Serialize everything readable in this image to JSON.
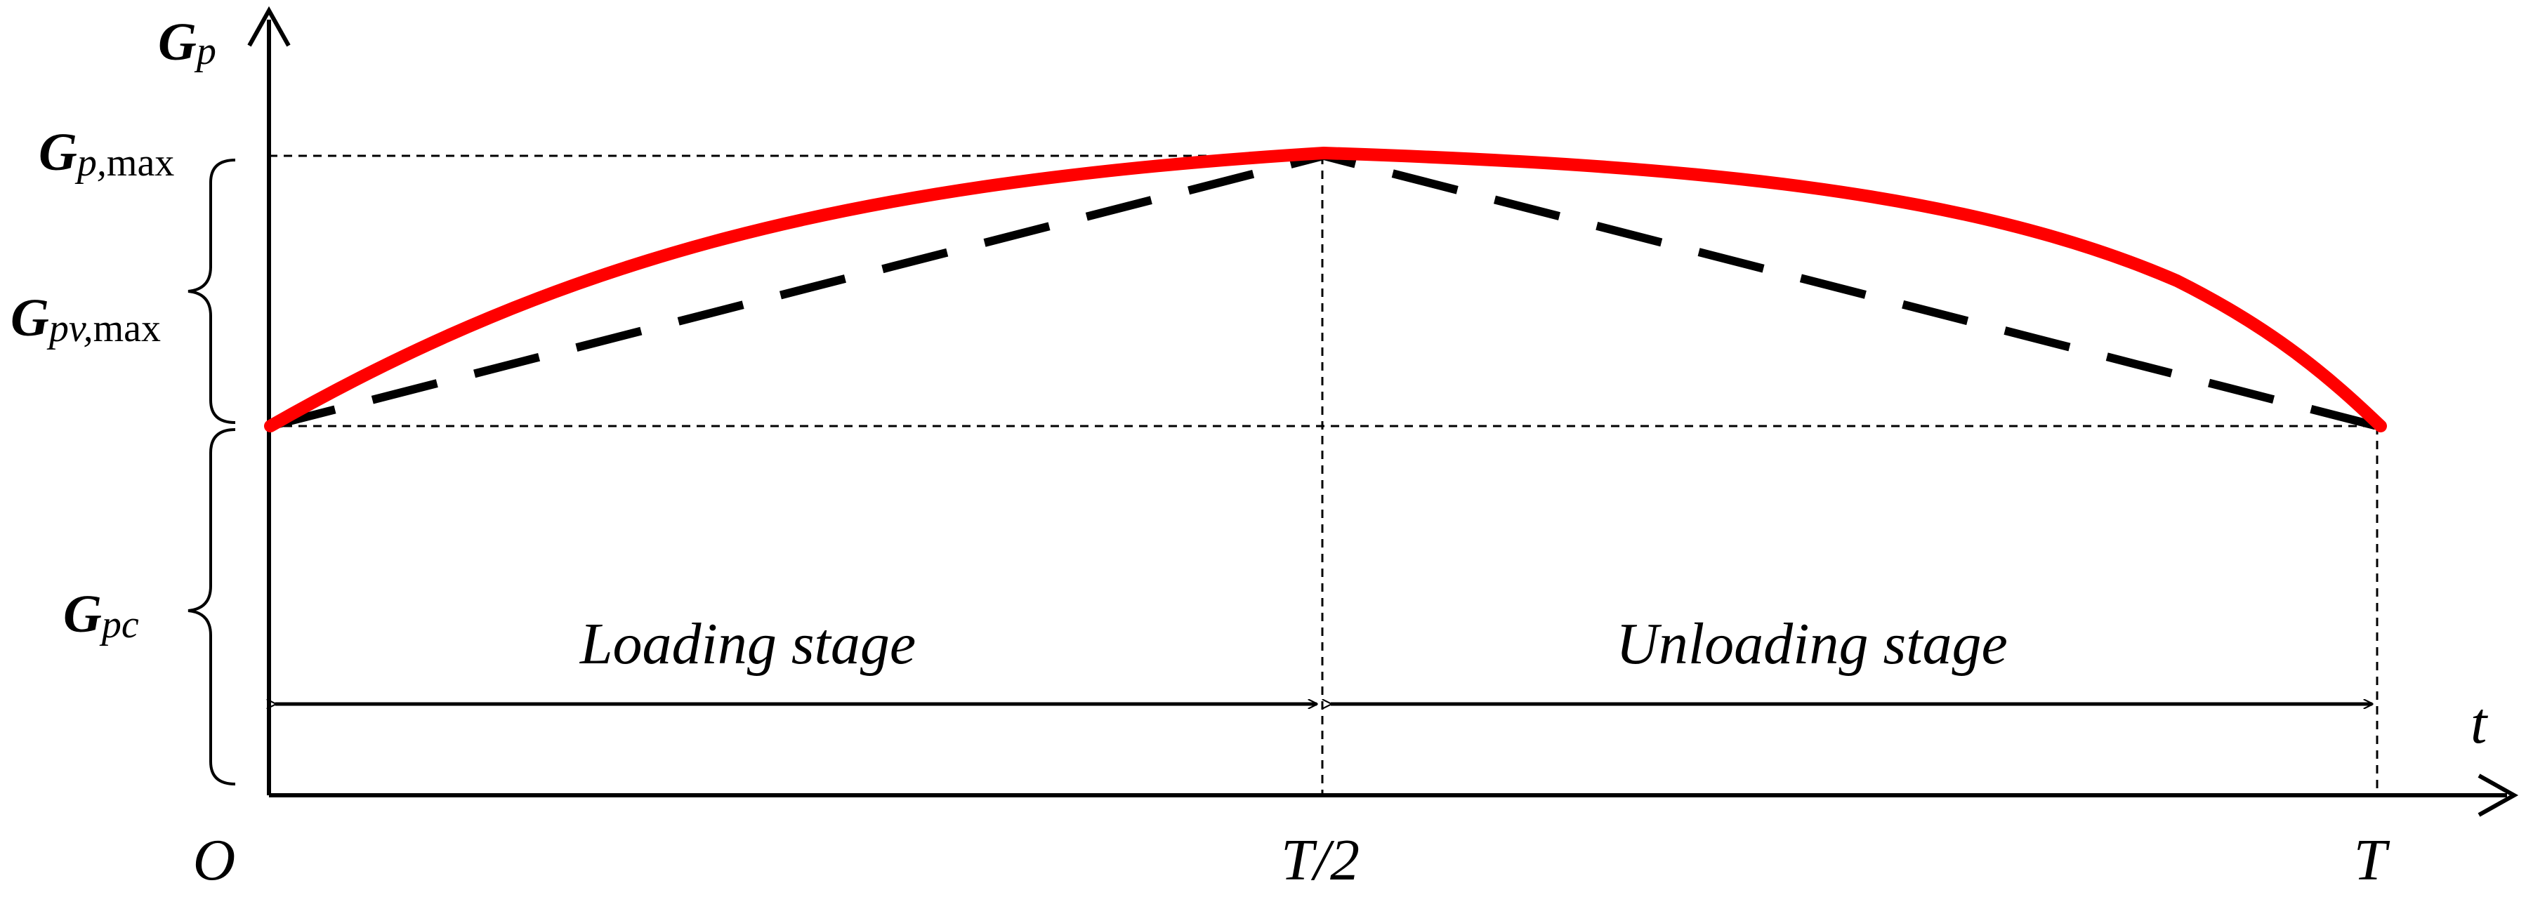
{
  "axes": {
    "y_label_main": "G",
    "y_label_sub": "p",
    "x_label": "t",
    "origin": "O",
    "x_mid": "T/2",
    "x_end": "T"
  },
  "levels": {
    "max_main": "G",
    "max_sub": "p,",
    "max_suffix": "max",
    "amp_main": "G",
    "amp_sub": "pv,",
    "amp_suffix": "max",
    "base_main": "G",
    "base_sub": "pc"
  },
  "stages": {
    "loading": "Loading stage",
    "unloading": "Unloading stage"
  },
  "colors": {
    "curve": "#ff0000",
    "dashed": "#000000",
    "axis": "#000000"
  }
}
